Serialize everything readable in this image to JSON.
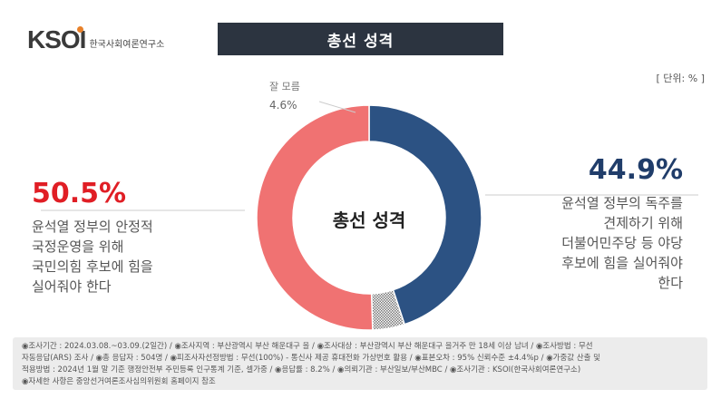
{
  "brand": {
    "logo_text": "KSOI",
    "logo_subtitle": "한국사회여론연구소"
  },
  "header": {
    "title": "총선 성격"
  },
  "unit_label": "[ 단위: % ]",
  "chart_data": {
    "type": "pie",
    "title": "총선 성격",
    "center_label": "총선 성격",
    "slices": [
      {
        "label": "윤석열 정부의 독주를 견제하기 위해 더불어민주당 등 야당 후보에 힘을 실어줘야 한다",
        "value": 44.9,
        "value_label": "44.9%",
        "color": "#2c5283"
      },
      {
        "label": "잘 모름",
        "value": 4.6,
        "value_label": "4.6%",
        "color": "#999999"
      },
      {
        "label": "윤석열 정부의 안정적 국정운영을 위해 국민의힘 후보에 힘을 실어줘야 한다",
        "value": 50.5,
        "value_label": "50.5%",
        "color": "#f07272"
      }
    ]
  },
  "labels": {
    "left_pct": "50.5%",
    "left_desc": "윤석열 정부의 안정적\n국정운영을 위해\n국민의힘 후보에 힘을\n실어줘야 한다",
    "right_pct": "44.9%",
    "right_desc": "윤석열 정부의 독주를\n견제하기 위해\n더불어민주당 등 야당\n후보에 힘을 실어줘야\n한다",
    "dk_name": "잘 모름",
    "dk_pct": "4.6%"
  },
  "footer": {
    "line1": "◉조사기간 : 2024.03.08.~03.09.(2일간)   / ◉조사지역 : 부산광역시 부산 해운대구 을  / ◉조사대상 : 부산광역시 부산 해운대구 을거주 만 18세 이상 남녀 / ◉조사방법 : 무선",
    "line2": "자동응답(ARS) 조사  / ◉총 응답자 : 504명  / ◉피조사자선정방법 : 무선(100%) - 통신사 제공 휴대전화 가상번호 활용  / ◉표본오차 : 95% 신뢰수준 ±4.4%p / ◉가중값 산출 및",
    "line3": "적용방법 : 2024년 1월 말 기준 행정안전부 주민등록 인구통계 기준, 셀가중  / ◉응답률 : 8.2%  / ◉의뢰기관 : 부산일보/부산MBC  / ◉조사기관 : KSOI(한국사회여론연구소)",
    "line4": "◉자세한 사항은 중앙선거여론조사심의위원회 홈페이지 참조"
  }
}
